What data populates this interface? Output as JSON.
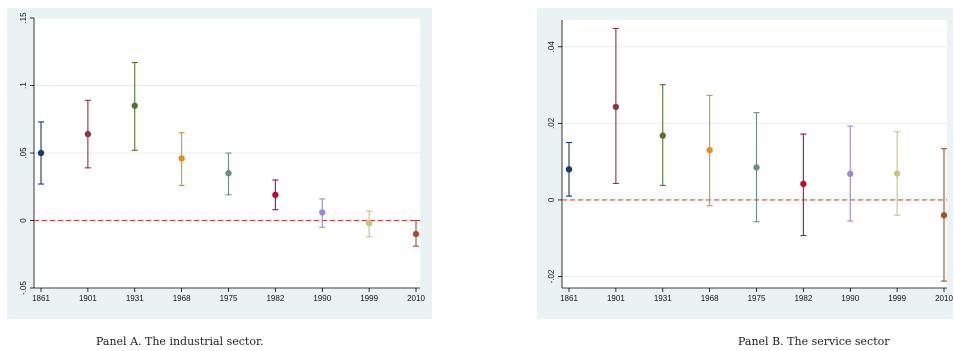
{
  "captions": {
    "a": "Panel A. The industrial sector.",
    "b": "Panel B. The service sector"
  },
  "colors": {
    "background": "#eaf2f3",
    "plot_area": "#ffffff",
    "reference_line": "#c0504d",
    "series": [
      "#1a3a6b",
      "#90353b",
      "#55752f",
      "#e48f1b",
      "#6e8e84",
      "#c10534",
      "#938dd2",
      "#cac27e",
      "#a0522d"
    ]
  },
  "chart_data": [
    {
      "type": "scatter",
      "title": "",
      "xlabel": "",
      "ylabel": "",
      "categories": [
        "1861",
        "1901",
        "1931",
        "1968",
        "1975",
        "1982",
        "1990",
        "1999",
        "2010"
      ],
      "values": [
        0.05,
        0.064,
        0.085,
        0.046,
        0.035,
        0.019,
        0.006,
        -0.002,
        -0.01
      ],
      "ci_low": [
        0.027,
        0.039,
        0.052,
        0.026,
        0.019,
        0.008,
        -0.005,
        -0.012,
        -0.019
      ],
      "ci_high": [
        0.073,
        0.089,
        0.117,
        0.065,
        0.05,
        0.03,
        0.016,
        0.007,
        0.0
      ],
      "ylim": [
        -0.05,
        0.15
      ],
      "yticks": [
        -0.05,
        0,
        0.05,
        0.1,
        0.15
      ],
      "ytick_labels": [
        "-.05",
        "0",
        ".05",
        ".1",
        ".15"
      ],
      "reference_y": 0,
      "grid": true
    },
    {
      "type": "scatter",
      "title": "",
      "xlabel": "",
      "ylabel": "",
      "categories": [
        "1861",
        "1901",
        "1931",
        "1968",
        "1975",
        "1982",
        "1990",
        "1999",
        "2010"
      ],
      "values": [
        0.008,
        0.0243,
        0.0168,
        0.013,
        0.0085,
        0.0042,
        0.0068,
        0.0069,
        -0.004
      ],
      "ci_low": [
        0.001,
        0.0043,
        0.0038,
        -0.0015,
        -0.0057,
        -0.0093,
        -0.0055,
        -0.004,
        -0.0212
      ],
      "ci_high": [
        0.015,
        0.0448,
        0.0301,
        0.0273,
        0.0228,
        0.0172,
        0.0193,
        0.0178,
        0.0134
      ],
      "ylim": [
        -0.023,
        0.047
      ],
      "yticks": [
        -0.02,
        0,
        0.02,
        0.04
      ],
      "ytick_labels": [
        "-.02",
        "0",
        ".02",
        ".04"
      ],
      "reference_y": 0,
      "grid": true
    }
  ]
}
